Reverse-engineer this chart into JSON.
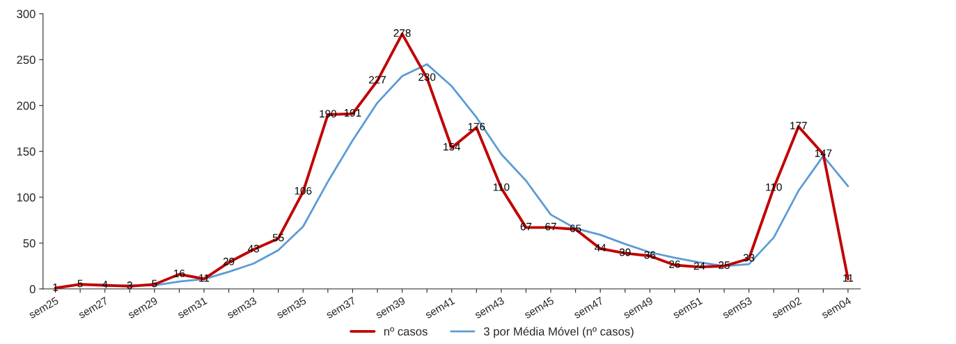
{
  "chart_data": {
    "type": "line",
    "categories": [
      "sem25",
      null,
      "sem27",
      null,
      "sem29",
      null,
      "sem31",
      null,
      "sem33",
      null,
      "sem35",
      null,
      "sem37",
      null,
      "sem39",
      null,
      "sem41",
      null,
      "sem43",
      null,
      "sem45",
      null,
      "sem47",
      null,
      "sem49",
      null,
      "sem51",
      null,
      "sem53",
      null,
      "sem02",
      null,
      "sem04"
    ],
    "series": [
      {
        "name": "nº casos",
        "color": "#c00000",
        "values": [
          1,
          5,
          4,
          3,
          5,
          16,
          11,
          29,
          43,
          55,
          106,
          190,
          191,
          227,
          278,
          230,
          154,
          176,
          110,
          67,
          67,
          65,
          44,
          39,
          36,
          26,
          24,
          25,
          33,
          110,
          177,
          147,
          11
        ],
        "value_labels": [
          "1",
          "5",
          "4",
          "3",
          "5",
          "16",
          "11",
          "29",
          "43",
          "55",
          "106",
          "190",
          "191",
          "227",
          "278",
          "230",
          "154",
          "176",
          "110",
          "67",
          "67",
          "65",
          "44",
          "39",
          "36",
          "26",
          "24",
          "25",
          "33",
          "110",
          "177",
          "147",
          "11"
        ]
      },
      {
        "name": "3 por Média Móvel (nº casos)",
        "color": "#5b9bd5",
        "values": [
          null,
          null,
          3.3,
          4,
          4,
          8,
          10.7,
          18.7,
          27.7,
          42.3,
          68,
          117,
          162,
          203,
          232,
          245,
          221,
          187,
          147,
          118,
          81,
          66,
          59,
          49,
          40,
          34,
          29,
          25,
          27,
          56,
          107,
          145,
          112
        ]
      }
    ],
    "ylim": [
      0,
      300
    ],
    "yticks": [
      0,
      50,
      100,
      150,
      200,
      250,
      300
    ],
    "grid": false,
    "legend": "bottom",
    "marker": "none",
    "line_style": "solid"
  }
}
